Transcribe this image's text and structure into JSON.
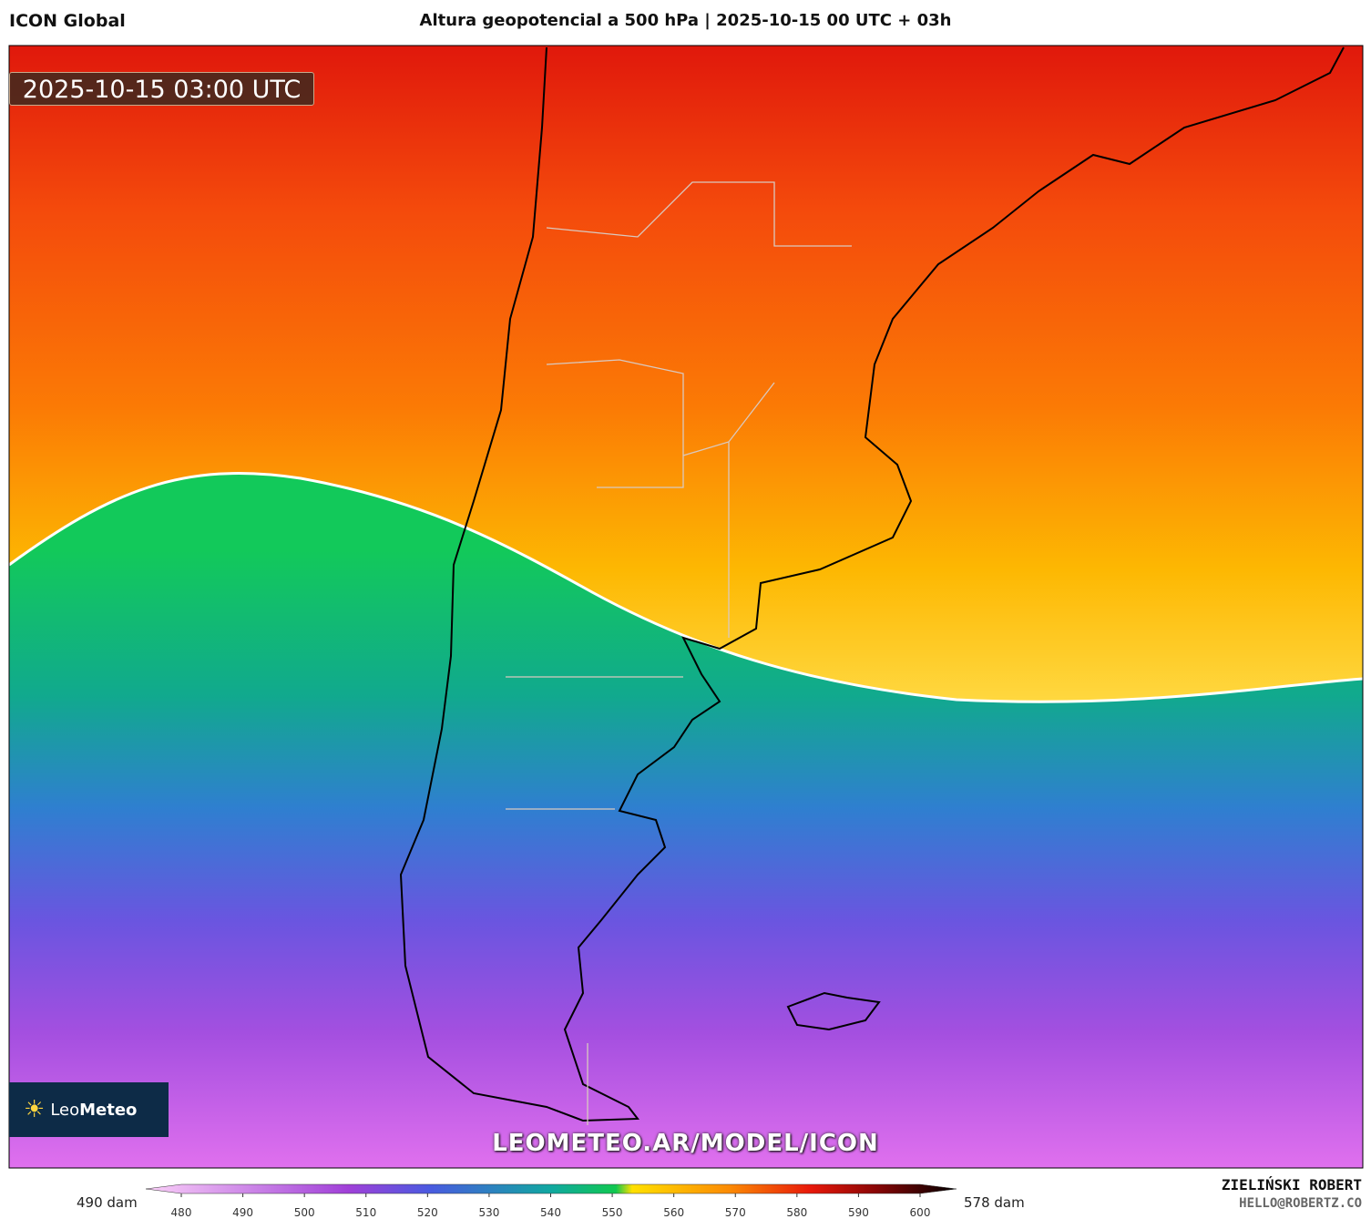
{
  "header": {
    "model": "ICON Global",
    "title": "Altura geopotencial a 500 hPa | 2025-10-15 00 UTC + 03h"
  },
  "map": {
    "timestamp": "2025-10-15 03:00 UTC",
    "logo_prefix": "Leo",
    "logo_main": "Meteo",
    "watermark": "LEOMETEO.AR/MODEL/ICON"
  },
  "colorbar": {
    "min_label": "490 dam",
    "max_label": "578 dam",
    "ticks": [
      480,
      490,
      500,
      510,
      520,
      530,
      540,
      550,
      560,
      570,
      580,
      590,
      600
    ]
  },
  "credits": {
    "author": "ZIELIŃSKI ROBERT",
    "contact": "HELLO@ROBERTZ.CO"
  }
}
